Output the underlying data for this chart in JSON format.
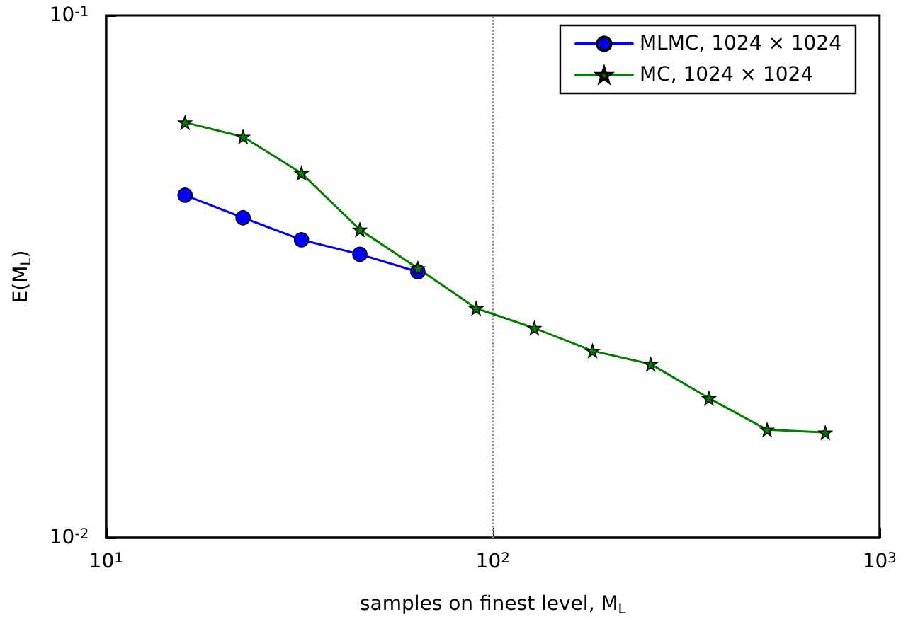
{
  "chart_data": {
    "type": "line",
    "xlabel": "samples on finest level, M$_{L}$",
    "ylabel": "E(M$_{L}$)",
    "log": "xy",
    "xlim": [
      10,
      1000
    ],
    "ylim": [
      0.01,
      0.1
    ],
    "xticks": [
      {
        "value": 10,
        "label": "10$^{1}$"
      },
      {
        "value": 100,
        "label": "10$^{2}$"
      },
      {
        "value": 1000,
        "label": "10$^{3}$"
      }
    ],
    "yticks": [
      {
        "value": 0.01,
        "label": "10$^{-2}$"
      },
      {
        "value": 0.1,
        "label": "10$^{-1}$"
      }
    ],
    "grid": false,
    "legend": "top right",
    "line_style": "solid",
    "ref_lines": [
      {
        "axis": "x",
        "value": 100,
        "color": "#888888",
        "line_style": "dotted"
      }
    ],
    "series": [
      {
        "name": "MLMC, 1024 × 1024",
        "color": "#0000ff",
        "marker": "circle",
        "x": [
          16,
          22.6,
          32,
          45.3,
          64
        ],
        "values": [
          0.0453,
          0.041,
          0.0372,
          0.0349,
          0.0323
        ]
      },
      {
        "name": "MC, 1024 × 1024",
        "color": "#007f00",
        "marker": "star",
        "x": [
          16,
          22.6,
          32,
          45.3,
          64,
          90.5,
          128,
          181,
          256,
          362,
          512,
          724
        ],
        "values": [
          0.0624,
          0.0586,
          0.0499,
          0.0389,
          0.0328,
          0.0275,
          0.0252,
          0.0228,
          0.0215,
          0.0185,
          0.0161,
          0.0159
        ]
      }
    ]
  }
}
